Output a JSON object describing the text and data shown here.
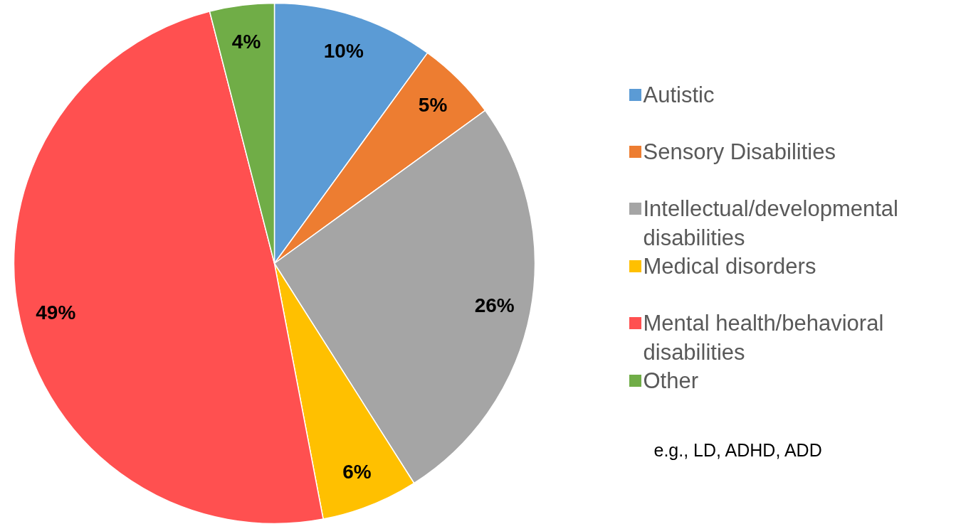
{
  "chart_data": {
    "type": "pie",
    "categories": [
      "Autistic",
      "Sensory Disabilities",
      "Intellectual/developmental disabilities",
      "Medical disorders",
      "Mental health/behavioral disabilities",
      "Other"
    ],
    "values": [
      10,
      5,
      26,
      6,
      49,
      4
    ],
    "colors": [
      "#5b9bd5",
      "#ed7d31",
      "#a5a5a5",
      "#ffc000",
      "#ff5050",
      "#70ad47"
    ],
    "value_labels": [
      "10%",
      "5%",
      "26%",
      "6%",
      "49%",
      "4%"
    ],
    "legend": "right",
    "annotations": [
      "e.g., LD, ADHD, ADD"
    ]
  }
}
